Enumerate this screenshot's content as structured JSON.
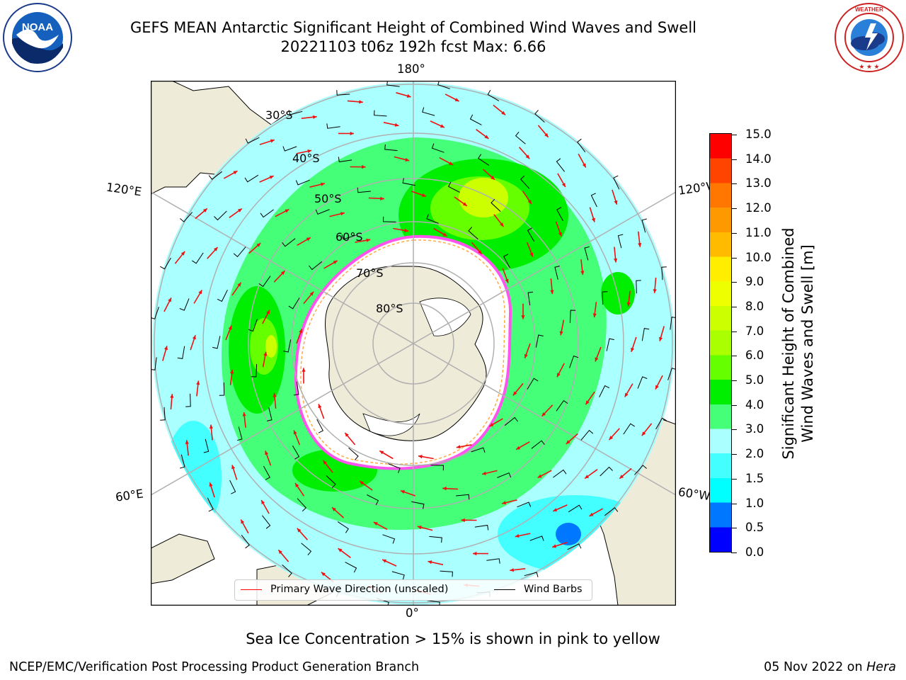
{
  "header": {
    "title_line1": "GEFS MEAN Antarctic Significant Height of Combined Wind Waves and Swell",
    "title_line2": "20221103 t06z 192h fcst   Max: 6.66"
  },
  "logos": {
    "left_name": "noaa-logo",
    "left_text": "NOAA",
    "left_ring_text": "NATIONAL OCEANIC AND ATMOSPHERIC ADMINISTRATION · U.S. DEPARTMENT OF COMMERCE ·",
    "right_name": "nws-logo",
    "right_ring_text": "NATIONAL WEATHER SERVICE"
  },
  "map": {
    "projection": "south polar stereographic",
    "latitude_labels": [
      "30°S",
      "40°S",
      "50°S",
      "60°S",
      "70°S",
      "80°S"
    ],
    "longitude_labels": {
      "top": "180°",
      "bottom": "0°",
      "upper_left": "120°E",
      "lower_left": "60°E",
      "upper_right": "120°W",
      "lower_right": "60°W"
    },
    "colors": {
      "land": "#efebd9",
      "ice_sheet": "#ffffff",
      "gridline": "#b0b0b0",
      "sea_ice_edge_pink": "#ff55ee",
      "sea_ice_edge_yellow": "#ffaa44",
      "wave_arrow": "#ee1111",
      "wind_barb": "#000000"
    }
  },
  "legend": {
    "items": [
      {
        "label": "Primary Wave Direction (unscaled)",
        "color": "#ff0000"
      },
      {
        "label": "Wind Barbs",
        "color": "#000000"
      }
    ]
  },
  "colorbar": {
    "label_line1": "Significant Height of Combined",
    "label_line2": "Wind Waves and Swell [m]",
    "ticks": [
      "15.0",
      "14.0",
      "13.0",
      "12.0",
      "11.0",
      "10.0",
      "9.0",
      "8.0",
      "7.0",
      "6.0",
      "5.0",
      "4.0",
      "3.0",
      "2.0",
      "1.5",
      "1.0",
      "0.5",
      "0.0"
    ],
    "colors_bottom_to_top": [
      "#0000ff",
      "#0077ff",
      "#00ffff",
      "#44ffff",
      "#aaffff",
      "#44ff77",
      "#00ee00",
      "#66ff00",
      "#aaff00",
      "#ccff00",
      "#eeff00",
      "#ffee00",
      "#ffbb00",
      "#ff9900",
      "#ff7700",
      "#ff4400",
      "#ff0000"
    ]
  },
  "footnote": "Sea Ice Concentration > 15% is shown in pink to yellow",
  "footer": {
    "left": "NCEP/EMC/Verification Post Processing Product Generation Branch",
    "right_date": "05 Nov 2022 on ",
    "right_machine": "Hera"
  }
}
